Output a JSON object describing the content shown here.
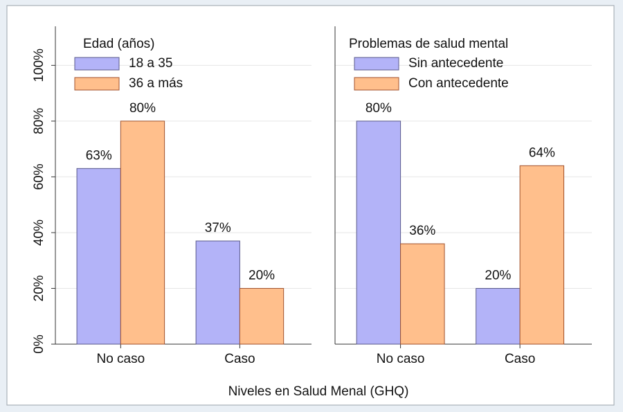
{
  "xlabel": "Niveles en Salud Menal (GHQ)",
  "chart_data": [
    {
      "type": "bar",
      "legend_title": "Edad (años)",
      "legend": "top-left",
      "grid": true,
      "categories": [
        "No caso",
        "Caso"
      ],
      "series": [
        {
          "name": "18 a 35",
          "color": "#b3b3f8",
          "values": [
            63,
            37
          ],
          "value_labels": [
            "63%",
            "37%"
          ]
        },
        {
          "name": "36 a más",
          "color": "#ffbf8c",
          "values": [
            80,
            20
          ],
          "value_labels": [
            "80%",
            "20%"
          ]
        }
      ],
      "ylim": [
        0,
        114
      ],
      "yticks": [
        {
          "value": 0,
          "label": "0%"
        },
        {
          "value": 20,
          "label": "20%"
        },
        {
          "value": 40,
          "label": "40%"
        },
        {
          "value": 60,
          "label": "60%"
        },
        {
          "value": 80,
          "label": "80%"
        },
        {
          "value": 100,
          "label": "100%"
        }
      ]
    },
    {
      "type": "bar",
      "legend_title": "Problemas de salud mental",
      "legend": "top-left",
      "grid": true,
      "categories": [
        "No caso",
        "Caso"
      ],
      "series": [
        {
          "name": "Sin antecedente",
          "color": "#b3b3f8",
          "values": [
            80,
            20
          ],
          "value_labels": [
            "80%",
            "20%"
          ]
        },
        {
          "name": "Con antecedente",
          "color": "#ffbf8c",
          "values": [
            36,
            64
          ],
          "value_labels": [
            "36%",
            "64%"
          ]
        }
      ],
      "ylim": [
        0,
        114
      ],
      "yticks": [
        0,
        20,
        40,
        60,
        80,
        100
      ]
    }
  ]
}
